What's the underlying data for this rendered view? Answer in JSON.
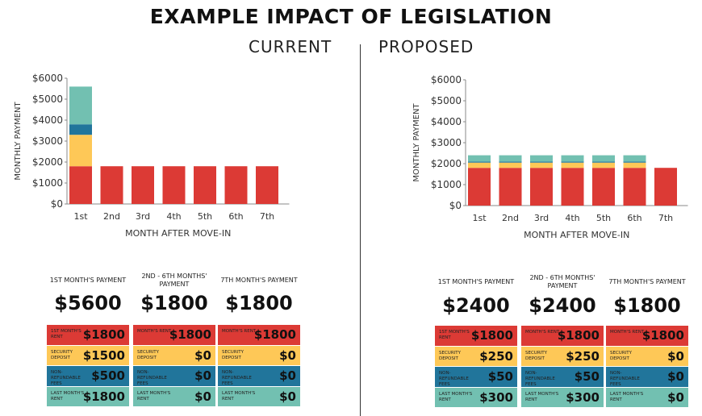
{
  "title": "EXAMPLE IMPACT OF LEGISLATION",
  "colors": {
    "rent": "#dc3a35",
    "deposit": "#fec857",
    "fees": "#21759b",
    "last": "#72c0b1"
  },
  "chart_data": [
    {
      "type": "bar",
      "stacked": true,
      "title": "CURRENT",
      "xlabel": "MONTH AFTER MOVE-IN",
      "ylabel": "MONTHLY PAYMENT",
      "ylim": [
        0,
        6000
      ],
      "yticks": [
        "$0",
        "$1000",
        "$2000",
        "$3000",
        "$4000",
        "$5000",
        "$6000"
      ],
      "categories": [
        "1st",
        "2nd",
        "3rd",
        "4th",
        "5th",
        "6th",
        "7th"
      ],
      "series": [
        {
          "key": "rent",
          "values": [
            1800,
            1800,
            1800,
            1800,
            1800,
            1800,
            1800
          ]
        },
        {
          "key": "deposit",
          "values": [
            1500,
            0,
            0,
            0,
            0,
            0,
            0
          ]
        },
        {
          "key": "fees",
          "values": [
            500,
            0,
            0,
            0,
            0,
            0,
            0
          ]
        },
        {
          "key": "last",
          "values": [
            1800,
            0,
            0,
            0,
            0,
            0,
            0
          ]
        }
      ]
    },
    {
      "type": "bar",
      "stacked": true,
      "title": "PROPOSED",
      "xlabel": "MONTH AFTER MOVE-IN",
      "ylabel": "MONTHLY PAYMENT",
      "ylim": [
        0,
        6000
      ],
      "yticks": [
        "$0",
        "$1000",
        "$2000",
        "$3000",
        "$4000",
        "$5000",
        "$6000"
      ],
      "categories": [
        "1st",
        "2nd",
        "3rd",
        "4th",
        "5th",
        "6th",
        "7th"
      ],
      "series": [
        {
          "key": "rent",
          "values": [
            1800,
            1800,
            1800,
            1800,
            1800,
            1800,
            1800
          ]
        },
        {
          "key": "deposit",
          "values": [
            250,
            250,
            250,
            250,
            250,
            250,
            0
          ]
        },
        {
          "key": "fees",
          "values": [
            50,
            50,
            50,
            50,
            50,
            50,
            0
          ]
        },
        {
          "key": "last",
          "values": [
            300,
            300,
            300,
            300,
            300,
            300,
            0
          ]
        }
      ]
    }
  ],
  "tables": [
    {
      "columns": [
        {
          "caption": "1ST MONTH'S PAYMENT",
          "total": "$5600",
          "rows": [
            [
              "1ST MONTH'S RENT",
              "$1800"
            ],
            [
              "SECURITY DEPOSIT",
              "$1500"
            ],
            [
              "NON-REFUNDABLE FEES",
              "$500"
            ],
            [
              "LAST MONTH'S RENT",
              "$1800"
            ]
          ]
        },
        {
          "caption": "2ND - 6TH MONTHS' PAYMENT",
          "total": "$1800",
          "rows": [
            [
              "MONTH'S RENT",
              "$1800"
            ],
            [
              "SECURITY DEPOSIT",
              "$0"
            ],
            [
              "NON-REFUNDABLE FEES",
              "$0"
            ],
            [
              "LAST MONTH'S RENT",
              "$0"
            ]
          ]
        },
        {
          "caption": "7TH MONTH'S PAYMENT",
          "total": "$1800",
          "rows": [
            [
              "MONTH'S RENT",
              "$1800"
            ],
            [
              "SECURITY DEPOSIT",
              "$0"
            ],
            [
              "NON-REFUNDABLE FEES",
              "$0"
            ],
            [
              "LAST MONTH'S RENT",
              "$0"
            ]
          ]
        }
      ]
    },
    {
      "columns": [
        {
          "caption": "1ST MONTH'S PAYMENT",
          "total": "$2400",
          "rows": [
            [
              "1ST MONTH'S RENT",
              "$1800"
            ],
            [
              "SECURITY DEPOSIT",
              "$250"
            ],
            [
              "NON-REFUNDABLE FEES",
              "$50"
            ],
            [
              "LAST MONTH'S RENT",
              "$300"
            ]
          ]
        },
        {
          "caption": "2ND - 6TH MONTHS' PAYMENT",
          "total": "$2400",
          "rows": [
            [
              "MONTH'S RENT",
              "$1800"
            ],
            [
              "SECURITY DEPOSIT",
              "$250"
            ],
            [
              "NON-REFUNDABLE FEES",
              "$50"
            ],
            [
              "LAST MONTH'S RENT",
              "$300"
            ]
          ]
        },
        {
          "caption": "7TH MONTH'S PAYMENT",
          "total": "$1800",
          "rows": [
            [
              "MONTH'S RENT",
              "$1800"
            ],
            [
              "SECURITY DEPOSIT",
              "$0"
            ],
            [
              "NON-REFUNDABLE FEES",
              "$0"
            ],
            [
              "LAST MONTH'S RENT",
              "$0"
            ]
          ]
        }
      ]
    }
  ]
}
